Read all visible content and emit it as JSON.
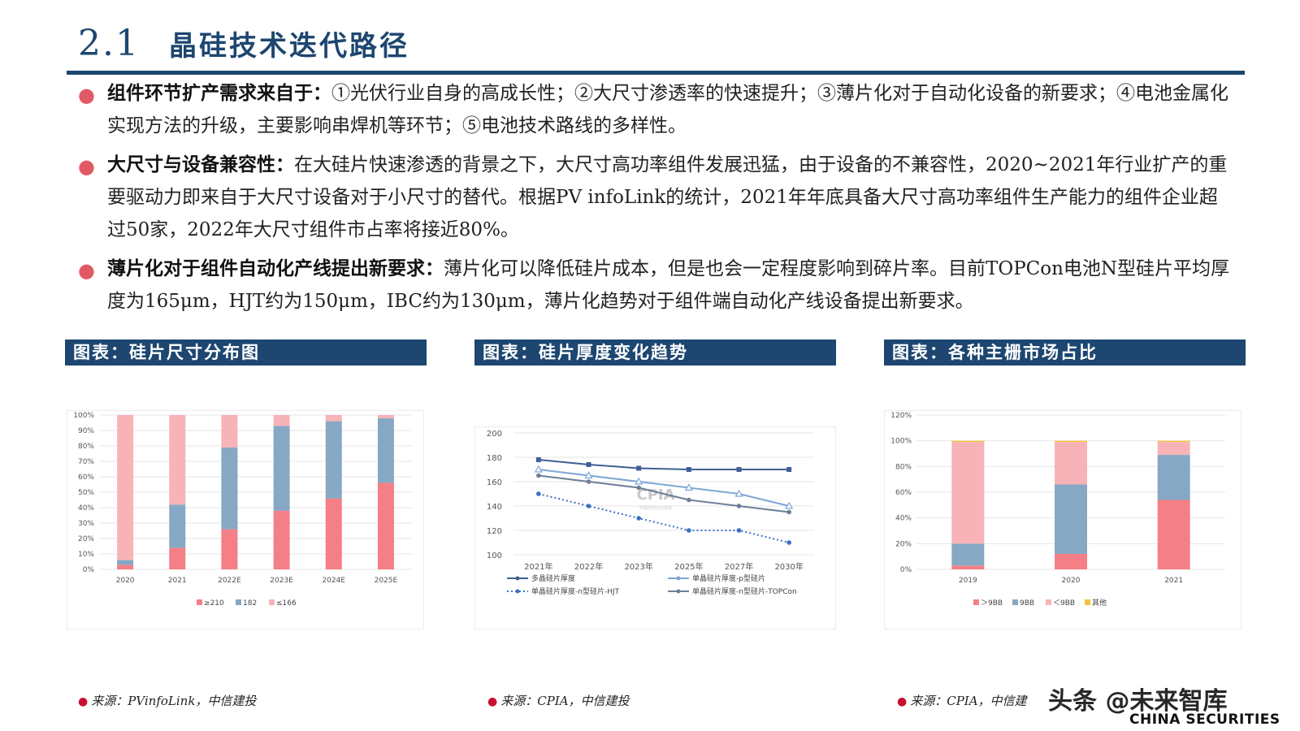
{
  "header": {
    "number": "2.1",
    "title": "晶硅技术迭代路径"
  },
  "bullets": [
    {
      "lead": "组件环节扩产需求来自于：",
      "body": "①光伏行业自身的高成长性；②大尺寸渗透率的快速提升；③薄片化对于自动化设备的新要求；④电池金属化实现方法的升级，主要影响串焊机等环节；⑤电池技术路线的多样性。"
    },
    {
      "lead": "大尺寸与设备兼容性：",
      "body": "在大硅片快速渗透的背景之下，大尺寸高功率组件发展迅猛，由于设备的不兼容性，2020~2021年行业扩产的重要驱动力即来自于大尺寸设备对于小尺寸的替代。根据PV infoLink的统计，2021年年底具备大尺寸高功率组件生产能力的组件企业超过50家，2022年大尺寸组件市占率将接近80%。"
    },
    {
      "lead": "薄片化对于组件自动化产线提出新要求：",
      "body": "薄片化可以降低硅片成本，但是也会一定程度影响到碎片率。目前TOPCon电池N型硅片平均厚度为165μm，HJT约为150μm，IBC约为130μm，薄片化趋势对于组件端自动化产线设备提出新要求。"
    }
  ],
  "figures": [
    {
      "title": "图表：硅片尺寸分布图",
      "source": "来源：PVinfoLink，中信建投"
    },
    {
      "title": "图表：硅片厚度变化趋势",
      "source": "来源：CPIA，中信建投"
    },
    {
      "title": "图表：各种主栅市场占比",
      "source": "来源：CPIA，中信建"
    }
  ],
  "chart_data": [
    {
      "type": "bar",
      "stacked": true,
      "categories": [
        "2020",
        "2021",
        "2022E",
        "2023E",
        "2024E",
        "2025E"
      ],
      "series": [
        {
          "name": "≥210",
          "color": "#f57f86",
          "values": [
            3,
            14,
            26,
            38,
            46,
            56
          ]
        },
        {
          "name": "182",
          "color": "#86a8c4",
          "values": [
            3,
            28,
            53,
            55,
            50,
            42
          ]
        },
        {
          "name": "≤166",
          "color": "#f8b3b8",
          "values": [
            94,
            58,
            21,
            7,
            4,
            2
          ]
        }
      ],
      "yticks": [
        "0%",
        "10%",
        "20%",
        "30%",
        "40%",
        "50%",
        "60%",
        "70%",
        "80%",
        "90%",
        "100%"
      ],
      "ylim": [
        0,
        100
      ],
      "legend": "bottom"
    },
    {
      "type": "line",
      "categories": [
        "2021年",
        "2022年",
        "2023年",
        "2025年",
        "2027年",
        "2030年"
      ],
      "series": [
        {
          "name": "多晶硅片厚度",
          "color": "#3f5f96",
          "marker": "square",
          "dash": false,
          "values": [
            178,
            174,
            171,
            170,
            170,
            170
          ]
        },
        {
          "name": "单晶硅片厚度-p型硅片",
          "color": "#7ea6d6",
          "marker": "triangle",
          "dash": false,
          "values": [
            170,
            165,
            160,
            155,
            150,
            140
          ]
        },
        {
          "name": "单晶硅片厚度-n型硅片-HJT",
          "color": "#3b6fc2",
          "marker": "circle",
          "dash": true,
          "values": [
            150,
            140,
            130,
            120,
            120,
            110
          ]
        },
        {
          "name": "单晶硅片厚度-n型硅片-TOPCon",
          "color": "#6d7f98",
          "marker": "circle",
          "dash": false,
          "values": [
            165,
            160,
            155,
            145,
            140,
            135
          ]
        }
      ],
      "yticks": [
        "100",
        "120",
        "140",
        "160",
        "180",
        "200"
      ],
      "ylim": [
        100,
        200
      ],
      "watermark": "CPIA",
      "watermark_sub": "中国光伏行业协会",
      "legend": "bottom"
    },
    {
      "type": "bar",
      "stacked": true,
      "categories": [
        "2019",
        "2020",
        "2021"
      ],
      "series": [
        {
          "name": "＞9BB",
          "color": "#f57f86",
          "values": [
            3,
            12,
            54
          ]
        },
        {
          "name": "9BB",
          "color": "#86a8c4",
          "values": [
            17,
            54,
            35
          ]
        },
        {
          "name": "＜9BB",
          "color": "#f8b3b8",
          "values": [
            79,
            33,
            10
          ]
        },
        {
          "name": "其他",
          "color": "#f5c242",
          "values": [
            1,
            1,
            1
          ]
        }
      ],
      "yticks": [
        "0%",
        "20%",
        "40%",
        "60%",
        "80%",
        "100%",
        "120%"
      ],
      "ylim": [
        0,
        120
      ],
      "legend": "bottom"
    }
  ],
  "watermark": "头条 @未来智库",
  "logo": "CHINA SECURITIES"
}
